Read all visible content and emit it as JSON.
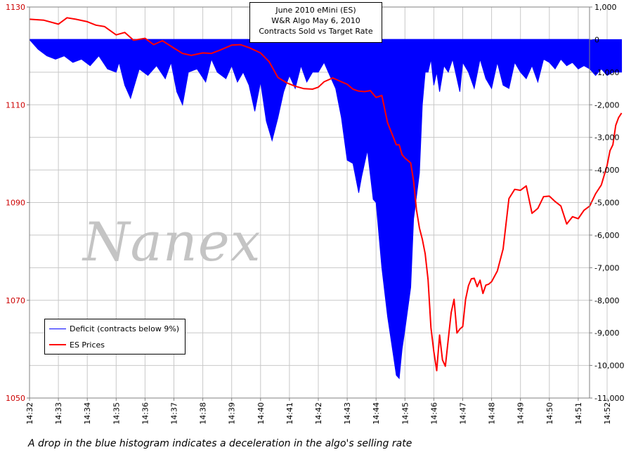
{
  "chart_data": {
    "type": "line",
    "title_lines": [
      "June 2010 eMini (ES)",
      "W&R Algo May 6, 2010",
      "Contracts Sold vs Target Rate"
    ],
    "x_tick_labels": [
      "14:32",
      "14:33",
      "14:34",
      "14:35",
      "14:36",
      "14:37",
      "14:38",
      "14:39",
      "14:40",
      "14:41",
      "14:42",
      "14:43",
      "14:44",
      "14:45",
      "14:46",
      "14:47",
      "14:48",
      "14:49",
      "14:50",
      "14:51",
      "14:52"
    ],
    "x_minutes": [
      0,
      20.5
    ],
    "y_left": {
      "range": [
        1050,
        1130
      ],
      "ticks": [
        1050,
        1070,
        1090,
        1110,
        1130
      ],
      "color": "#cc0000"
    },
    "y_right": {
      "range": [
        -11000,
        1000
      ],
      "ticks": [
        1000,
        0,
        -1000,
        -2000,
        -3000,
        -4000,
        -5000,
        -6000,
        -7000,
        -8000,
        -9000,
        -10000,
        -11000
      ],
      "tick_labels": [
        "1,000",
        "0",
        "-1,000",
        "-2,000",
        "-3,000",
        "-4,000",
        "-5,000",
        "-6,000",
        "-7,000",
        "-8,000",
        "-9,000",
        "-10,000",
        "-11,000"
      ]
    },
    "grid": true,
    "legend_position": "bottom-left",
    "series": [
      {
        "name": "Deficit (contracts below 9%)",
        "type": "area",
        "axis": "right",
        "color": "#0000ff",
        "x": [
          0,
          0.3,
          0.6,
          0.9,
          1.2,
          1.5,
          1.8,
          2.1,
          2.4,
          2.7,
          3.0,
          3.1,
          3.3,
          3.5,
          3.8,
          4.1,
          4.4,
          4.7,
          4.9,
          5.1,
          5.3,
          5.5,
          5.8,
          6.1,
          6.3,
          6.5,
          6.8,
          7.0,
          7.2,
          7.4,
          7.6,
          7.8,
          8.0,
          8.2,
          8.4,
          8.6,
          8.8,
          9.0,
          9.2,
          9.4,
          9.6,
          9.8,
          10.0,
          10.2,
          10.4,
          10.6,
          10.8,
          11.0,
          11.2,
          11.4,
          11.5,
          11.7,
          11.9,
          12.0,
          12.2,
          12.4,
          12.6,
          12.7,
          12.8,
          12.9,
          13.0,
          13.2,
          13.3,
          13.5,
          13.6,
          13.7,
          13.8,
          13.9,
          14.0,
          14.1,
          14.2,
          14.35,
          14.5,
          14.65,
          14.8,
          14.9,
          15.0,
          15.2,
          15.4,
          15.6,
          15.8,
          16.0,
          16.2,
          16.4,
          16.6,
          16.8,
          17.0,
          17.2,
          17.4,
          17.6,
          17.8,
          18.0,
          18.2,
          18.4,
          18.6,
          18.8,
          19.0,
          19.2,
          19.4,
          19.6,
          19.8,
          20.0,
          20.2,
          20.5
        ],
        "values": [
          0,
          -300,
          -500,
          -600,
          -500,
          -700,
          -600,
          -800,
          -500,
          -900,
          -1000,
          -700,
          -1400,
          -1800,
          -900,
          -1100,
          -800,
          -1200,
          -700,
          -1600,
          -2000,
          -1000,
          -900,
          -1300,
          -600,
          -1000,
          -1200,
          -800,
          -1300,
          -1000,
          -1400,
          -2200,
          -1300,
          -2500,
          -3100,
          -2400,
          -1600,
          -1100,
          -1500,
          -800,
          -1300,
          -1000,
          -1000,
          -700,
          -1100,
          -1500,
          -2400,
          -3700,
          -3800,
          -4700,
          -4200,
          -3400,
          -4900,
          -5000,
          -7000,
          -8500,
          -9700,
          -10300,
          -10400,
          -9500,
          -8900,
          -7600,
          -5500,
          -4100,
          -2000,
          -1000,
          -1000,
          -600,
          -1400,
          -1000,
          -1600,
          -800,
          -1000,
          -600,
          -1200,
          -1600,
          -700,
          -1000,
          -1500,
          -600,
          -1200,
          -1500,
          -700,
          -1400,
          -1500,
          -700,
          -1000,
          -1200,
          -800,
          -1300,
          -600,
          -700,
          -900,
          -600,
          -800,
          -700,
          -900,
          -800,
          -900,
          -1100,
          -900,
          -1100,
          -1000,
          -1000
        ]
      },
      {
        "name": "ES Prices",
        "type": "line",
        "axis": "left",
        "color": "#ff0000",
        "x": [
          0,
          0.5,
          1.0,
          1.3,
          1.6,
          2.0,
          2.3,
          2.6,
          3.0,
          3.3,
          3.6,
          4.0,
          4.3,
          4.6,
          5.0,
          5.3,
          5.6,
          6.0,
          6.3,
          6.6,
          7.0,
          7.3,
          7.6,
          8.0,
          8.3,
          8.6,
          8.9,
          9.2,
          9.5,
          9.8,
          10.0,
          10.2,
          10.5,
          10.8,
          11.0,
          11.2,
          11.4,
          11.6,
          11.8,
          12.0,
          12.2,
          12.4,
          12.6,
          12.7,
          12.8,
          12.9,
          13.0,
          13.1,
          13.2,
          13.3,
          13.4,
          13.5,
          13.6,
          13.7,
          13.8,
          13.9,
          14.0,
          14.1,
          14.2,
          14.3,
          14.4,
          14.5,
          14.6,
          14.7,
          14.8,
          14.9,
          15.0,
          15.1,
          15.2,
          15.3,
          15.4,
          15.5,
          15.6,
          15.7,
          15.8,
          15.9,
          16.0,
          16.2,
          16.4,
          16.6,
          16.8,
          17.0,
          17.2,
          17.4,
          17.6,
          17.8,
          18.0,
          18.2,
          18.4,
          18.6,
          18.8,
          19.0,
          19.2,
          19.4,
          19.6,
          19.8,
          20.0,
          20.1,
          20.2,
          20.3,
          20.4,
          20.5
        ],
        "values": [
          1127.5,
          1127.3,
          1126.5,
          1127.8,
          1127.5,
          1127,
          1126.3,
          1126,
          1124.3,
          1124.8,
          1123.2,
          1123.6,
          1122.3,
          1123.1,
          1121.6,
          1120.5,
          1120.1,
          1120.6,
          1120.5,
          1121.2,
          1122.2,
          1122.3,
          1121.7,
          1120.6,
          1118.8,
          1115.6,
          1114.5,
          1113.8,
          1113.3,
          1113.2,
          1113.6,
          1114.7,
          1115.5,
          1114.7,
          1114.2,
          1113.2,
          1112.8,
          1112.7,
          1112.9,
          1111.5,
          1111.9,
          1106.3,
          1103.3,
          1101.8,
          1101.8,
          1099.8,
          1099.1,
          1098.6,
          1098.1,
          1094.4,
          1088.5,
          1084.8,
          1082.5,
          1079.5,
          1074.2,
          1064.4,
          1059.5,
          1055.6,
          1062.9,
          1057.8,
          1056.5,
          1062.1,
          1067.5,
          1070.2,
          1063.3,
          1064.1,
          1064.6,
          1070.2,
          1073,
          1074.4,
          1074.5,
          1072.8,
          1074.1,
          1071.4,
          1073.1,
          1073.3,
          1073.8,
          1076,
          1080.5,
          1090.8,
          1092.7,
          1092.5,
          1093.4,
          1087.8,
          1088.8,
          1091.2,
          1091.3,
          1090.2,
          1089.3,
          1085.6,
          1087.1,
          1086.7,
          1088.4,
          1089.3,
          1091.8,
          1093.6,
          1097.6,
          1100.6,
          1101.8,
          1105.8,
          1107.4,
          1108.3
        ]
      }
    ]
  },
  "watermark": "Nanex",
  "caption": "A drop in the blue histogram indicates a deceleration in the algo's selling rate"
}
